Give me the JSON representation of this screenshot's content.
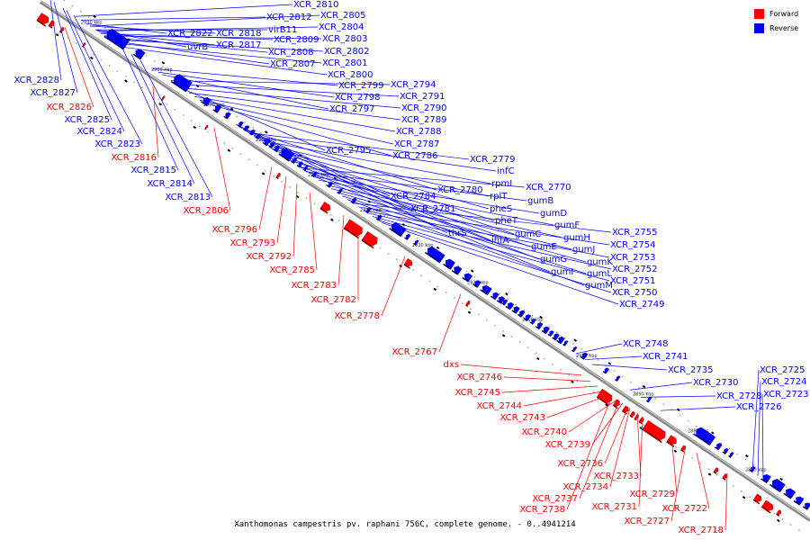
{
  "title": "Xanthomonas campestris pv. raphani 756C, complete genome. - 0..4941214",
  "legend": [
    {
      "label": "Forward",
      "color": "#ff0000"
    },
    {
      "label": "Reverse",
      "color": "#0000ff"
    }
  ],
  "colors": {
    "forward": "#ff0000",
    "reverse": "#0000ff",
    "axis": "#888888",
    "tick": "#000000"
  },
  "ticks": [
    "2990 kbp",
    "2980 kbp",
    "2970 kbp",
    "2960 kbp",
    "2950 kbp",
    "2940 kbp",
    "2930 kbp",
    "2920 kbp",
    "2910 kbp",
    "2900 kbp",
    "2890 kbp",
    "2880 kbp",
    "2870 kbp"
  ],
  "genes_reverse": [
    "XCR_2810",
    "XCR_2812",
    "XCR_2805",
    "XCR_2822",
    "XCR_2818",
    "virB11",
    "XCR_2804",
    "uvrB",
    "XCR_2817",
    "XCR_2809",
    "XCR_2803",
    "XCR_2808",
    "XCR_2802",
    "XCR_2807",
    "XCR_2801",
    "XCR_2800",
    "XCR_2828",
    "XCR_2827",
    "XCR_2825",
    "XCR_2824",
    "XCR_2823",
    "XCR_2815",
    "XCR_2814",
    "XCR_2813",
    "XCR_2799",
    "XCR_2794",
    "XCR_2798",
    "XCR_2791",
    "XCR_2797",
    "XCR_2790",
    "XCR_2789",
    "XCR_2788",
    "XCR_2787",
    "XCR_2795",
    "XCR_2786",
    "XCR_2779",
    "infC",
    "rpmI",
    "rplT",
    "XCR_2770",
    "XCR_2784",
    "XCR_2780",
    "gumB",
    "XCR_2781",
    "pheS",
    "gumD",
    "pheT",
    "gumF",
    "thrS",
    "gumC",
    "ihfA",
    "XCR_2755",
    "gumH",
    "XCR_2754",
    "gumE",
    "gumJ",
    "XCR_2753",
    "gumG",
    "gumK",
    "gumI",
    "XCR_2752",
    "gumL",
    "XCR_2751",
    "gumM",
    "XCR_2750",
    "XCR_2749",
    "XCR_2748",
    "XCR_2741",
    "XCR_2735",
    "XCR_2725",
    "XCR_2730",
    "XCR_2724",
    "XCR_2728",
    "XCR_2723",
    "XCR_2726"
  ],
  "genes_forward": [
    "XCR_2826",
    "XCR_2816",
    "XCR_2806",
    "XCR_2796",
    "XCR_2793",
    "XCR_2792",
    "XCR_2785",
    "XCR_2783",
    "XCR_2782",
    "XCR_2778",
    "XCR_2767",
    "dxs",
    "XCR_2746",
    "XCR_2745",
    "XCR_2744",
    "XCR_2743",
    "XCR_2740",
    "XCR_2739",
    "XCR_2736",
    "XCR_2733",
    "XCR_2734",
    "XCR_2729",
    "XCR_2737",
    "XCR_2731",
    "XCR_2738",
    "XCR_2727",
    "XCR_2722",
    "XCR_2718"
  ]
}
